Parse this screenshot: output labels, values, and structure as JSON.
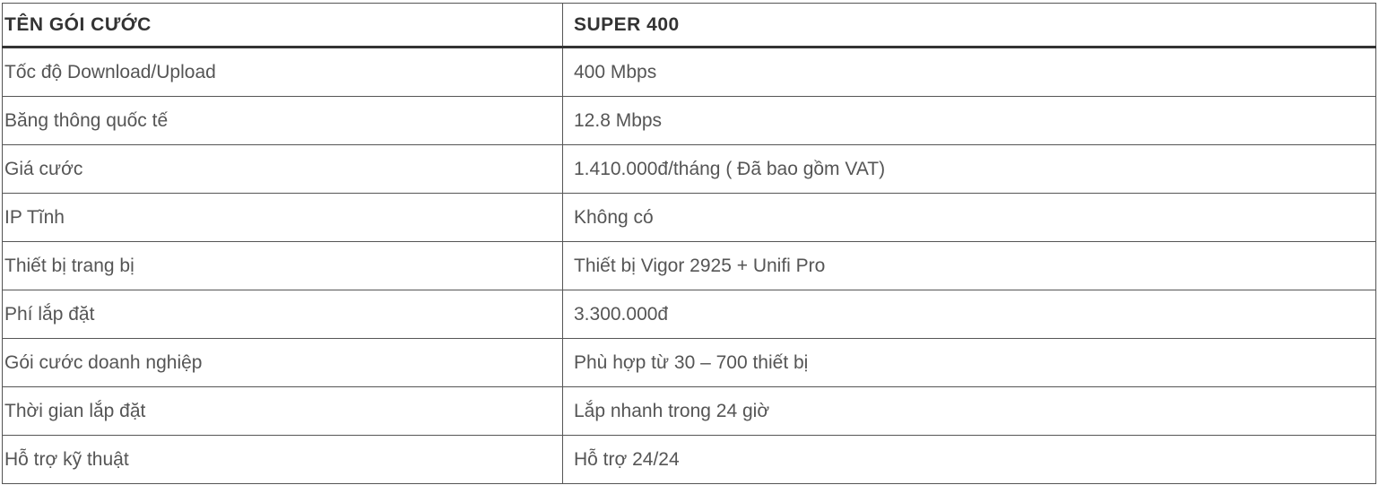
{
  "header": {
    "col1": "TÊN GÓI CƯỚC",
    "col2": "SUPER 400"
  },
  "rows": [
    {
      "label": "Tốc độ Download/Upload",
      "value": "400 Mbps"
    },
    {
      "label": "Băng thông quốc tế",
      "value": "12.8 Mbps"
    },
    {
      "label": "Giá cước",
      "value": "1.410.000đ/tháng ( Đã bao gồm VAT)"
    },
    {
      "label": "IP Tĩnh",
      "value": "Không có"
    },
    {
      "label": "Thiết bị trang bị",
      "value": "Thiết bị Vigor 2925 + Unifi Pro"
    },
    {
      "label": "Phí lắp đặt",
      "value": "3.300.000đ"
    },
    {
      "label": "Gói cước doanh nghiệp",
      "value": "Phù hợp từ 30 – 700 thiết bị"
    },
    {
      "label": "Thời gian lắp đặt",
      "value": "Lắp nhanh trong 24 giờ"
    },
    {
      "label": "Hỗ trợ kỹ thuật",
      "value": "Hỗ trợ 24/24"
    }
  ]
}
